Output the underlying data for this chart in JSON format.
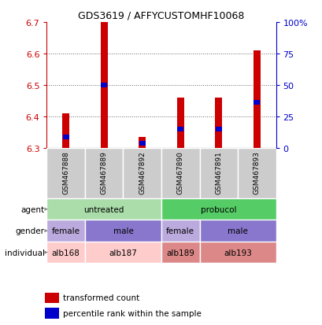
{
  "title": "GDS3619 / AFFYCUSTOMHF10068",
  "samples": [
    "GSM467888",
    "GSM467889",
    "GSM467892",
    "GSM467890",
    "GSM467891",
    "GSM467893"
  ],
  "bar_bottoms": [
    6.3,
    6.3,
    6.3,
    6.3,
    6.3,
    6.3
  ],
  "bar_tops": [
    6.41,
    6.7,
    6.335,
    6.46,
    6.46,
    6.61
  ],
  "blue_positions": [
    6.335,
    6.5,
    6.315,
    6.36,
    6.36,
    6.445
  ],
  "ylim": [
    6.3,
    6.7
  ],
  "yticks_left": [
    6.3,
    6.4,
    6.5,
    6.6,
    6.7
  ],
  "yticks_right": [
    0,
    25,
    50,
    75,
    100
  ],
  "ylabel_left_color": "#cc0000",
  "ylabel_right_color": "#0000cc",
  "bar_color": "#cc0000",
  "blue_color": "#0000cc",
  "grid_color": "#888888",
  "sample_bg_color": "#cccccc",
  "agent_row": {
    "groups": [
      {
        "label": "untreated",
        "start": 0,
        "end": 3,
        "color": "#aaddaa"
      },
      {
        "label": "probucol",
        "start": 3,
        "end": 6,
        "color": "#55cc66"
      }
    ]
  },
  "gender_row": {
    "groups": [
      {
        "label": "female",
        "start": 0,
        "end": 1,
        "color": "#bbaadd"
      },
      {
        "label": "male",
        "start": 1,
        "end": 3,
        "color": "#8877cc"
      },
      {
        "label": "female",
        "start": 3,
        "end": 4,
        "color": "#bbaadd"
      },
      {
        "label": "male",
        "start": 4,
        "end": 6,
        "color": "#8877cc"
      }
    ]
  },
  "individual_row": {
    "groups": [
      {
        "label": "alb168",
        "start": 0,
        "end": 1,
        "color": "#ffcccc"
      },
      {
        "label": "alb187",
        "start": 1,
        "end": 3,
        "color": "#ffcccc"
      },
      {
        "label": "alb189",
        "start": 3,
        "end": 4,
        "color": "#dd8888"
      },
      {
        "label": "alb193",
        "start": 4,
        "end": 6,
        "color": "#dd8888"
      }
    ]
  },
  "row_labels": [
    "agent",
    "gender",
    "individual"
  ],
  "legend_items": [
    {
      "label": "transformed count",
      "color": "#cc0000"
    },
    {
      "label": "percentile rank within the sample",
      "color": "#0000cc"
    }
  ],
  "bar_width": 0.18
}
